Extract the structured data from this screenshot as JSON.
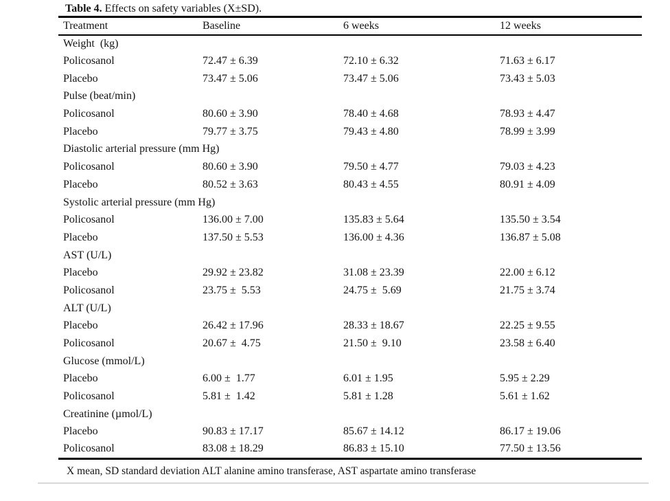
{
  "colors": {
    "page_background": "#ffffff",
    "rule": "#000000",
    "faint_rule": "#d9d9d9",
    "text": "#141414"
  },
  "table": {
    "title_bold": "Table 4.",
    "title_rest": " Effects on safety variables (X±SD).",
    "columns": [
      "Treatment",
      "Baseline",
      "6 weeks",
      "12 weeks"
    ],
    "rows": [
      {
        "type": "section",
        "label": "Weight  (kg)"
      },
      {
        "type": "data",
        "treatment": "Policosanol",
        "baseline": "72.47 ± 6.39",
        "w6": "72.10 ± 6.32",
        "w12": "71.63 ± 6.17"
      },
      {
        "type": "data",
        "treatment": "Placebo",
        "baseline": "73.47 ± 5.06",
        "w6": "73.47 ± 5.06",
        "w12": "73.43 ± 5.03"
      },
      {
        "type": "section",
        "label": "Pulse (beat/min)"
      },
      {
        "type": "data",
        "treatment": "Policosanol",
        "baseline": "80.60 ± 3.90",
        "w6": "78.40 ± 4.68",
        "w12": "78.93 ± 4.47"
      },
      {
        "type": "data",
        "treatment": "Placebo",
        "baseline": "79.77 ± 3.75",
        "w6": "79.43 ± 4.80",
        "w12": "78.99 ± 3.99"
      },
      {
        "type": "section",
        "label": "Diastolic arterial pressure (mm Hg)"
      },
      {
        "type": "data",
        "treatment": "Policosanol",
        "baseline": "80.60 ± 3.90",
        "w6": "79.50 ± 4.77",
        "w12": "79.03 ± 4.23"
      },
      {
        "type": "data",
        "treatment": "Placebo",
        "baseline": "80.52 ± 3.63",
        "w6": "80.43 ± 4.55",
        "w12": "80.91 ± 4.09"
      },
      {
        "type": "section",
        "label": "Systolic arterial pressure (mm Hg)"
      },
      {
        "type": "data",
        "treatment": "Policosanol",
        "baseline": "136.00 ± 7.00",
        "w6": "135.83 ± 5.64",
        "w12": "135.50 ± 3.54"
      },
      {
        "type": "data",
        "treatment": "Placebo",
        "baseline": "137.50 ± 5.53",
        "w6": "136.00 ± 4.36",
        "w12": "136.87 ± 5.08"
      },
      {
        "type": "section",
        "label": "AST (U/L)"
      },
      {
        "type": "data",
        "treatment": "Placebo",
        "baseline": "29.92 ± 23.82",
        "w6": "31.08 ± 23.39",
        "w12": "22.00 ± 6.12"
      },
      {
        "type": "data",
        "treatment": "Policosanol",
        "baseline": "23.75 ±  5.53",
        "w6": "24.75 ±  5.69",
        "w12": "21.75 ± 3.74"
      },
      {
        "type": "section",
        "label": "ALT (U/L)"
      },
      {
        "type": "data",
        "treatment": "Placebo",
        "baseline": "26.42 ± 17.96",
        "w6": "28.33 ± 18.67",
        "w12": "22.25 ± 9.55"
      },
      {
        "type": "data",
        "treatment": "Policosanol",
        "baseline": "20.67 ±  4.75",
        "w6": "21.50 ±  9.10",
        "w12": "23.58 ± 6.40"
      },
      {
        "type": "section",
        "label": "Glucose (mmol/L)"
      },
      {
        "type": "data",
        "treatment": "Placebo",
        "baseline": "6.00 ±  1.77",
        "w6": "6.01 ± 1.95",
        "w12": "5.95 ± 2.29"
      },
      {
        "type": "data",
        "treatment": "Policosanol",
        "baseline": "5.81 ±  1.42",
        "w6": "5.81 ± 1.28",
        "w12": "5.61 ± 1.62"
      },
      {
        "type": "section",
        "label": "Creatinine (µmol/L)"
      },
      {
        "type": "data",
        "treatment": "Placebo",
        "baseline": "90.83 ± 17.17",
        "w6": "85.67 ± 14.12",
        "w12": "86.17 ± 19.06"
      },
      {
        "type": "data",
        "treatment": "Policosanol",
        "baseline": "83.08 ± 18.29",
        "w6": "86.83 ± 15.10",
        "w12": "77.50 ± 13.56"
      }
    ],
    "footnote": "X mean, SD standard deviation ALT alanine amino transferase, AST aspartate amino transferase"
  }
}
